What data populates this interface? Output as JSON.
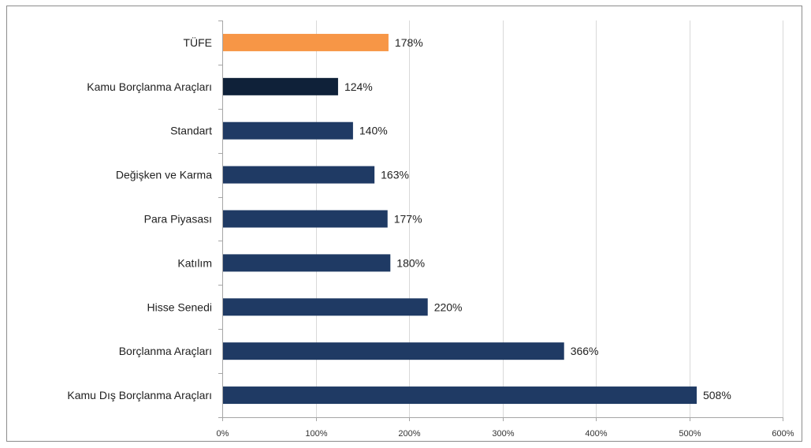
{
  "chart_data": {
    "type": "bar",
    "orientation": "horizontal",
    "categories": [
      "TÜFE",
      "Kamu Borçlanma Araçları",
      "Standart",
      "Değişken ve Karma",
      "Para Piyasası",
      "Katılım",
      "Hisse Senedi",
      "Borçlanma Araçları",
      "Kamu Dış Borçlanma Araçları"
    ],
    "values": [
      178,
      124,
      140,
      163,
      177,
      180,
      220,
      366,
      508
    ],
    "value_labels": [
      "178%",
      "124%",
      "140%",
      "163%",
      "177%",
      "180%",
      "220%",
      "366%",
      "508%"
    ],
    "bar_colors": [
      "#f79646",
      "#0f2139",
      "#1f3a64",
      "#1f3a64",
      "#1f3a64",
      "#1f3a64",
      "#1f3a64",
      "#1f3a64",
      "#1f3a64"
    ],
    "xlim": [
      0,
      600
    ],
    "x_ticks": [
      0,
      100,
      200,
      300,
      400,
      500,
      600
    ],
    "x_tick_labels": [
      "0%",
      "100%",
      "200%",
      "300%",
      "400%",
      "500%",
      "600%"
    ],
    "grid": "vertical",
    "title": "",
    "xlabel": "",
    "ylabel": "",
    "legend": "none"
  }
}
